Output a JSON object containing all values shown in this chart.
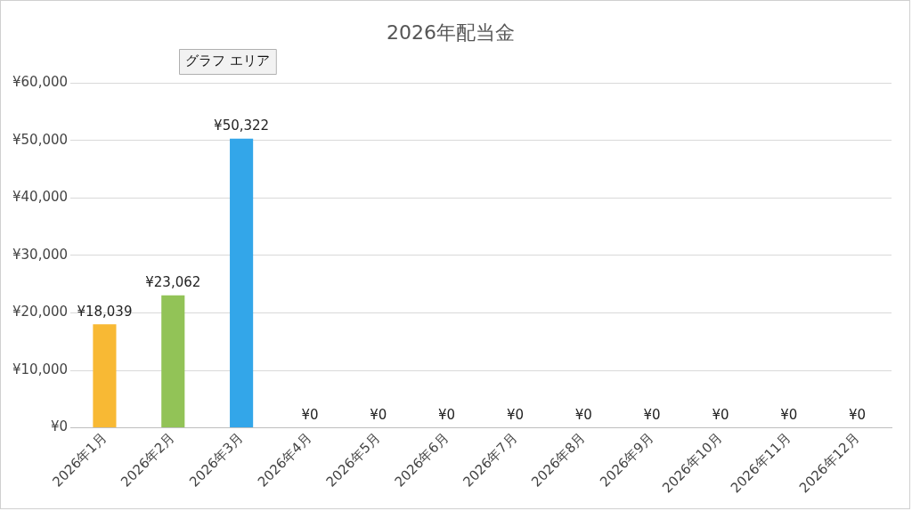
{
  "chart_data": {
    "type": "bar",
    "title": "2026年配当金",
    "categories": [
      "2026年1月",
      "2026年2月",
      "2026年3月",
      "2026年4月",
      "2026年5月",
      "2026年6月",
      "2026年7月",
      "2026年8月",
      "2026年9月",
      "2026年10月",
      "2026年11月",
      "2026年12月"
    ],
    "values": [
      18039,
      23062,
      50322,
      0,
      0,
      0,
      0,
      0,
      0,
      0,
      0,
      0
    ],
    "colors": [
      "#f8b934",
      "#92c357",
      "#33a6e9",
      "#f8b934",
      "#92c357",
      "#33a6e9",
      "#f8b934",
      "#92c357",
      "#33a6e9",
      "#f8b934",
      "#92c357",
      "#33a6e9"
    ],
    "value_labels": [
      "¥18,039",
      "¥23,062",
      "¥50,322",
      "¥0",
      "¥0",
      "¥0",
      "¥0",
      "¥0",
      "¥0",
      "¥0",
      "¥0",
      "¥0"
    ],
    "ylim": [
      0,
      60000
    ],
    "yticks": [
      {
        "value": 0,
        "label": "¥0"
      },
      {
        "value": 10000,
        "label": "¥10,000"
      },
      {
        "value": 20000,
        "label": "¥20,000"
      },
      {
        "value": 30000,
        "label": "¥30,000"
      },
      {
        "value": 40000,
        "label": "¥40,000"
      },
      {
        "value": 50000,
        "label": "¥50,000"
      },
      {
        "value": 60000,
        "label": "¥60,000"
      }
    ],
    "grid": "y",
    "annotations": [
      "グラフ エリア"
    ]
  }
}
